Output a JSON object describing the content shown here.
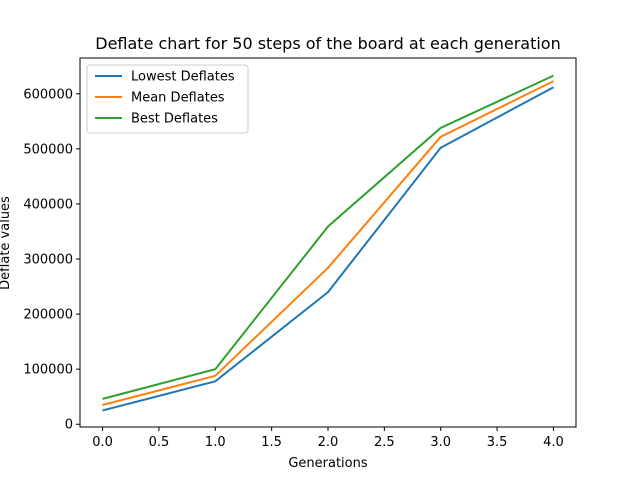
{
  "chart_data": {
    "type": "line",
    "title": "Deflate chart for 50 steps of the board at each generation",
    "xlabel": "Generations",
    "ylabel": "Deflate values",
    "x": [
      0,
      1,
      2,
      3,
      4
    ],
    "xlim": [
      -0.2,
      4.2
    ],
    "ylim": [
      -5000,
      665000
    ],
    "xticks": [
      0,
      0.5,
      1,
      1.5,
      2,
      2.5,
      3,
      3.5,
      4
    ],
    "xtick_labels": [
      "0.0",
      "0.5",
      "1.0",
      "1.5",
      "2.0",
      "2.5",
      "3.0",
      "3.5",
      "4.0"
    ],
    "yticks": [
      0,
      100000,
      200000,
      300000,
      400000,
      500000,
      600000
    ],
    "ytick_labels": [
      "0",
      "100000",
      "200000",
      "300000",
      "400000",
      "500000",
      "600000"
    ],
    "grid": false,
    "legend_position": "top-left",
    "series": [
      {
        "name": "Lowest Deflates",
        "color": "#1f77b4",
        "values": [
          25000,
          78000,
          240000,
          502000,
          612000
        ]
      },
      {
        "name": "Mean Deflates",
        "color": "#ff7f0e",
        "values": [
          35000,
          88000,
          284000,
          522000,
          623000
        ]
      },
      {
        "name": "Best Deflates",
        "color": "#2ca02c",
        "values": [
          46000,
          100000,
          359000,
          538000,
          633000
        ]
      }
    ]
  }
}
